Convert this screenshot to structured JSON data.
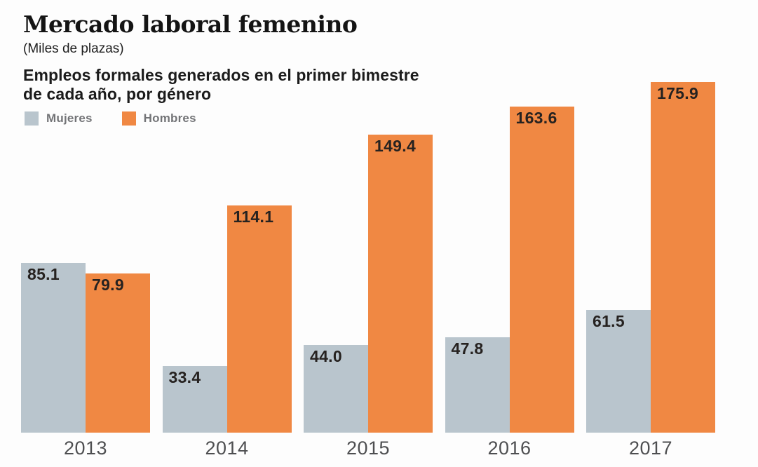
{
  "header": {
    "title": "Mercado laboral femenino",
    "units": "(Miles de plazas)",
    "subtitle_lines": [
      "Empleos formales generados en el primer bimestre",
      "de cada año, por género"
    ]
  },
  "legend": [
    {
      "label": "Mujeres",
      "color": "#b9c5cd"
    },
    {
      "label": "Hombres",
      "color": "#f08843"
    }
  ],
  "chart_data": {
    "type": "bar",
    "title": "Mercado laboral femenino",
    "subtitle": "Empleos formales generados en el primer bimestre de cada año, por género",
    "units_label": "Miles de plazas",
    "categories": [
      "2013",
      "2014",
      "2015",
      "2016",
      "2017"
    ],
    "series": [
      {
        "name": "Mujeres",
        "color": "#b9c5cd",
        "values": [
          85.1,
          33.4,
          44.0,
          47.8,
          61.5
        ]
      },
      {
        "name": "Hombres",
        "color": "#f08843",
        "values": [
          79.9,
          114.1,
          149.4,
          163.6,
          175.9
        ]
      }
    ],
    "value_labels": "one-decimal, inside top of each bar",
    "value_label_color": "#262220",
    "ylim": [
      0,
      190
    ],
    "grid": false,
    "axes": "no visible axis lines, category labels below baseline",
    "legend_position": "top-left"
  }
}
